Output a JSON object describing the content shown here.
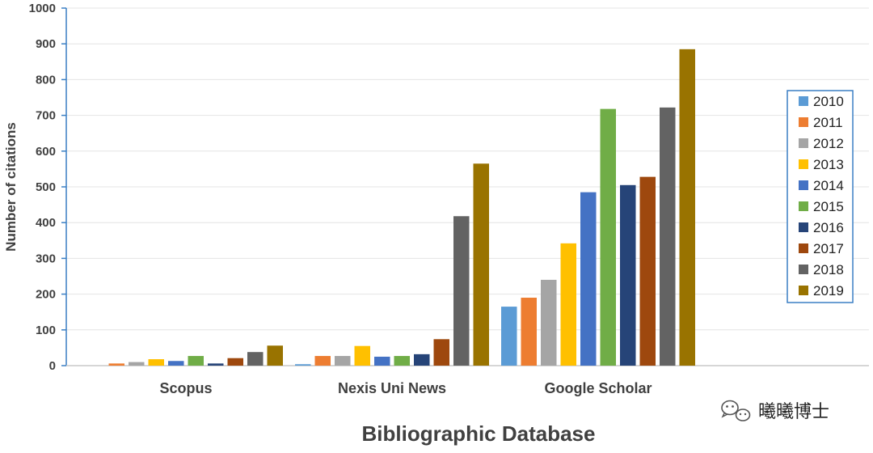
{
  "chart_data": {
    "type": "bar",
    "xlabel": "Bibliographic Database",
    "ylabel": "Number of citations",
    "ylim": [
      0,
      1000
    ],
    "yticks": [
      0,
      100,
      200,
      300,
      400,
      500,
      600,
      700,
      800,
      900,
      1000
    ],
    "grid": true,
    "legend_position": "right",
    "categories": [
      "Scopus",
      "Nexis Uni News",
      "Google Scholar"
    ],
    "series": [
      {
        "name": "2010",
        "color": "#5B9BD5",
        "values": [
          0,
          4,
          165
        ]
      },
      {
        "name": "2011",
        "color": "#ED7D31",
        "values": [
          6,
          27,
          190
        ]
      },
      {
        "name": "2012",
        "color": "#A5A5A5",
        "values": [
          10,
          27,
          240
        ]
      },
      {
        "name": "2013",
        "color": "#FFC000",
        "values": [
          18,
          55,
          342
        ]
      },
      {
        "name": "2014",
        "color": "#4472C4",
        "values": [
          13,
          25,
          485
        ]
      },
      {
        "name": "2015",
        "color": "#70AD47",
        "values": [
          27,
          27,
          718
        ]
      },
      {
        "name": "2016",
        "color": "#264478",
        "values": [
          6,
          32,
          505
        ]
      },
      {
        "name": "2017",
        "color": "#9E480E",
        "values": [
          21,
          74,
          528
        ]
      },
      {
        "name": "2018",
        "color": "#636363",
        "values": [
          38,
          418,
          722
        ]
      },
      {
        "name": "2019",
        "color": "#997300",
        "values": [
          56,
          565,
          885
        ]
      }
    ]
  },
  "watermark": {
    "icon": "wechat-icon",
    "text": "曦曦博士"
  }
}
